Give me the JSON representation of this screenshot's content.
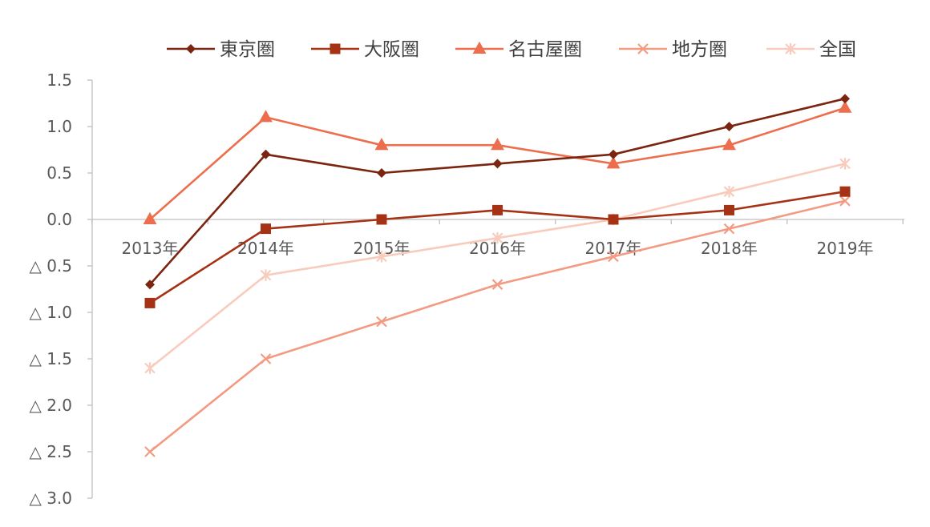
{
  "chart_data": {
    "type": "line",
    "categories": [
      "2013年",
      "2014年",
      "2015年",
      "2016年",
      "2017年",
      "2018年",
      "2019年"
    ],
    "ylim": [
      -3.0,
      1.5
    ],
    "yticks": [
      1.5,
      1.0,
      0.5,
      0.0,
      -0.5,
      -1.0,
      -1.5,
      -2.0,
      -2.5,
      -3.0
    ],
    "ytick_labels": [
      "1.5",
      "1.0",
      "0.5",
      "0.0",
      "△ 0.5",
      "△ 1.0",
      "△ 1.5",
      "△ 2.0",
      "△ 2.5",
      "△ 3.0"
    ],
    "legend_position": "top",
    "grid": false,
    "series": [
      {
        "name": "東京圏",
        "marker": "diamond",
        "color": "#7B2410",
        "values": [
          -0.7,
          0.7,
          0.5,
          0.6,
          0.7,
          1.0,
          1.3
        ]
      },
      {
        "name": "大阪圏",
        "marker": "square",
        "color": "#A63215",
        "values": [
          -0.9,
          -0.1,
          0.0,
          0.1,
          0.0,
          0.1,
          0.3
        ]
      },
      {
        "name": "名古屋圏",
        "marker": "triangle",
        "color": "#EC6E4C",
        "values": [
          0.0,
          1.1,
          0.8,
          0.8,
          0.6,
          0.8,
          1.2
        ]
      },
      {
        "name": "地方圏",
        "marker": "x",
        "color": "#F29B82",
        "values": [
          -2.5,
          -1.5,
          -1.1,
          -0.7,
          -0.4,
          -0.1,
          0.2
        ]
      },
      {
        "name": "全国",
        "marker": "asterisk",
        "color": "#F9CBBD",
        "values": [
          -1.6,
          -0.6,
          -0.4,
          -0.2,
          0.0,
          0.3,
          0.6
        ]
      }
    ]
  }
}
